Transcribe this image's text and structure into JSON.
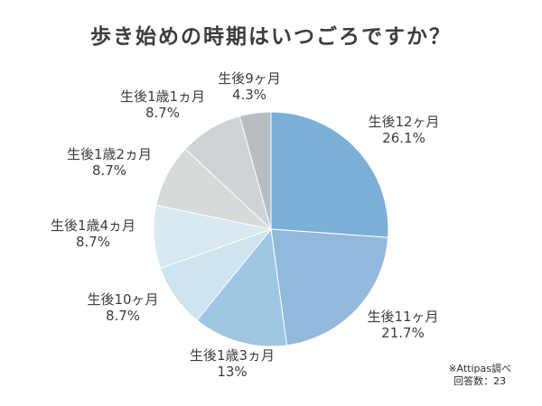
{
  "title": "歩き始めの時期はいつごろですか？",
  "footnote": {
    "source": "※Attipas調べ",
    "responses": "回答数：23"
  },
  "chart_data": {
    "type": "pie",
    "title": "歩き始めの時期はいつごろですか？",
    "unit": "%",
    "start_angle": "top",
    "direction": "clockwise",
    "legend_position": "labels-around-pie",
    "slices": [
      {
        "label": "生後12ヶ月",
        "value": 26.1,
        "display": "26.1%",
        "color": "#7bb0d9"
      },
      {
        "label": "生後11ヶ月",
        "value": 21.7,
        "display": "21.7%",
        "color": "#92badd"
      },
      {
        "label": "生後1歳3ヵ月",
        "value": 13,
        "display": "13%",
        "color": "#9fc6e3"
      },
      {
        "label": "生後10ヶ月",
        "value": 8.7,
        "display": "8.7%",
        "color": "#cee4ee"
      },
      {
        "label": "生後1歳4ヵ月",
        "value": 8.7,
        "display": "8.7%",
        "color": "#d8eaef"
      },
      {
        "label": "生後1歳2ヵ月",
        "value": 8.7,
        "display": "8.7%",
        "color": "#d6dadb"
      },
      {
        "label": "生後1歳1ヵ月",
        "value": 8.7,
        "display": "8.7%",
        "color": "#cfd3d5"
      },
      {
        "label": "生後9ヶ月",
        "value": 4.3,
        "display": "4.3%",
        "color": "#b9bdc0"
      }
    ],
    "annotations": [
      "※Attipas調べ",
      "回答数：23"
    ]
  }
}
